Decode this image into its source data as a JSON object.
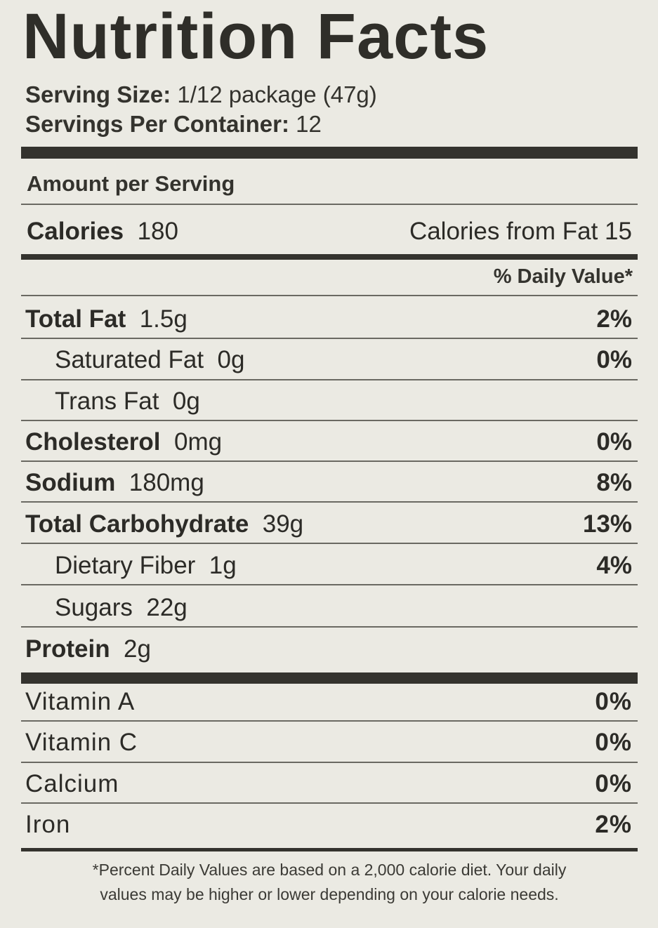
{
  "title": "Nutrition Facts",
  "serving_size_label": "Serving Size:",
  "serving_size_value": "1/12 package (47g)",
  "servings_label": "Servings Per Container:",
  "servings_value": "12",
  "amount_per_serving": "Amount per Serving",
  "calories_label": "Calories",
  "calories_value": "180",
  "calories_from_fat": "Calories from Fat 15",
  "daily_value_header": "% Daily Value*",
  "nutrients": [
    {
      "name": "Total Fat",
      "amount": "1.5g",
      "dv": "2%"
    },
    {
      "name": "Saturated Fat",
      "amount": "0g",
      "dv": "0%"
    },
    {
      "name": "Trans Fat",
      "amount": "0g",
      "dv": ""
    },
    {
      "name": "Cholesterol",
      "amount": "0mg",
      "dv": "0%"
    },
    {
      "name": "Sodium",
      "amount": "180mg",
      "dv": "8%"
    },
    {
      "name": "Total Carbohydrate",
      "amount": "39g",
      "dv": "13%"
    },
    {
      "name": "Dietary Fiber",
      "amount": "1g",
      "dv": "4%"
    },
    {
      "name": "Sugars",
      "amount": "22g",
      "dv": ""
    },
    {
      "name": "Protein",
      "amount": "2g",
      "dv": ""
    }
  ],
  "vitamins": [
    {
      "name": "Vitamin  A",
      "dv": "0%"
    },
    {
      "name": "Vitamin  C",
      "dv": "0%"
    },
    {
      "name": "Calcium",
      "dv": "0%"
    },
    {
      "name": "Iron",
      "dv": "2%"
    }
  ],
  "footnote_line1": "*Percent Daily Values are based on a 2,000 calorie diet. Your daily",
  "footnote_line2": "values may be higher or lower depending on your calorie needs."
}
